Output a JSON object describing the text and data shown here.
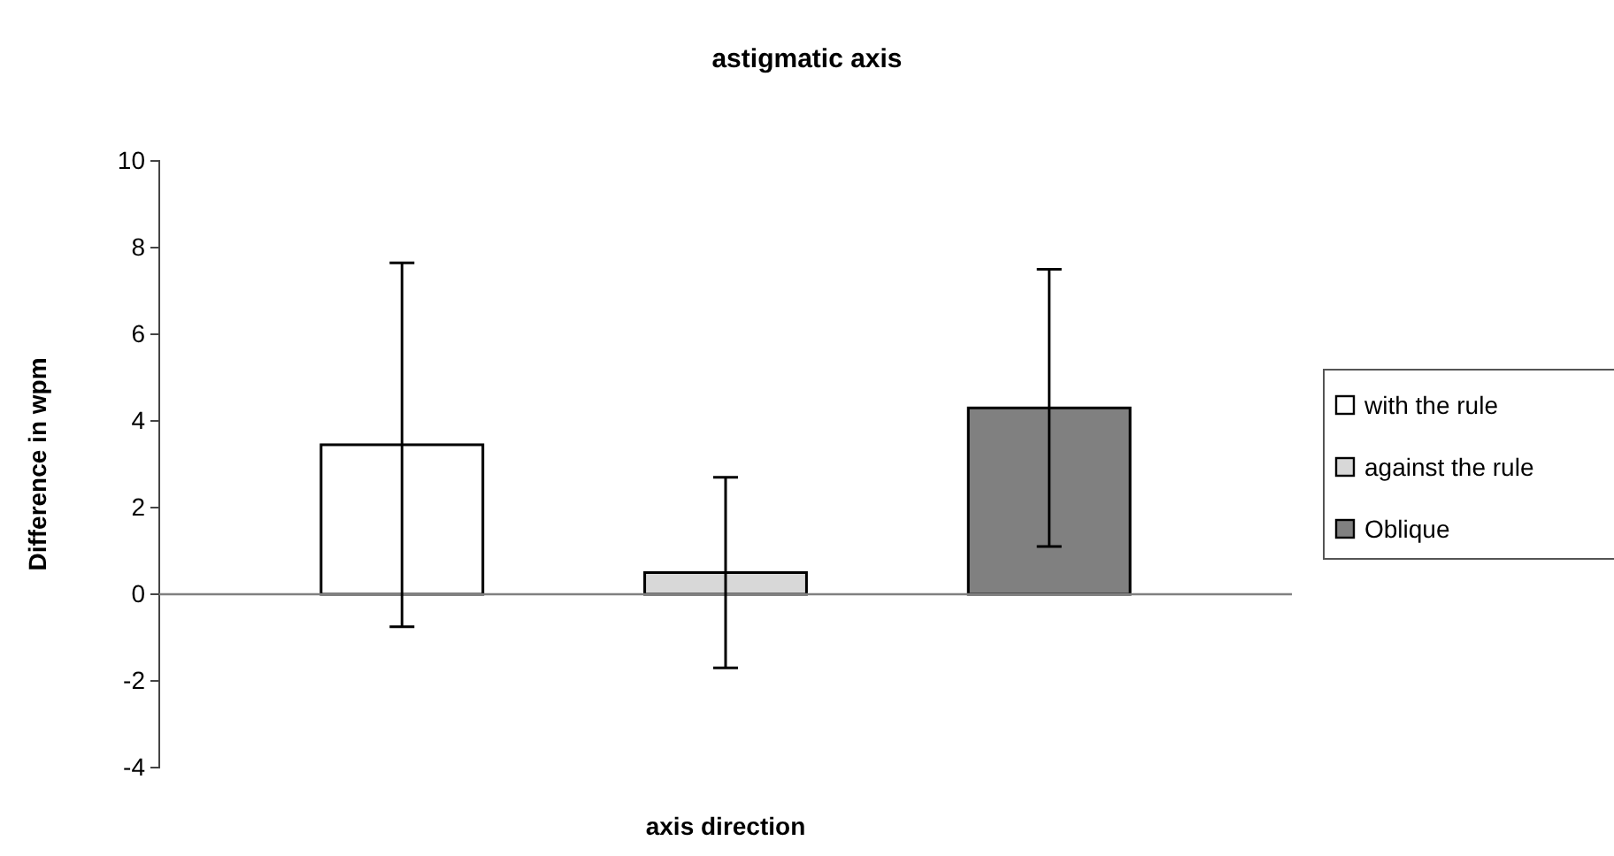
{
  "chart_data": {
    "type": "bar",
    "title": "astigmatic axis",
    "xlabel": "axis direction",
    "ylabel": "Difference in wpm",
    "categories": [
      null
    ],
    "series": [
      {
        "name": "with the rule",
        "color": "#ffffff",
        "values": [
          3.45
        ],
        "errors": [
          4.2
        ]
      },
      {
        "name": "against the rule",
        "color": "#d8d8d8",
        "values": [
          0.5
        ],
        "errors": [
          2.2
        ]
      },
      {
        "name": "Oblique",
        "color": "#808080",
        "values": [
          4.3
        ],
        "errors": [
          3.2
        ]
      }
    ],
    "ylim": [
      -4,
      10
    ],
    "yticks": [
      -4,
      -2,
      0,
      2,
      4,
      6,
      8,
      10
    ],
    "legend": "right"
  }
}
